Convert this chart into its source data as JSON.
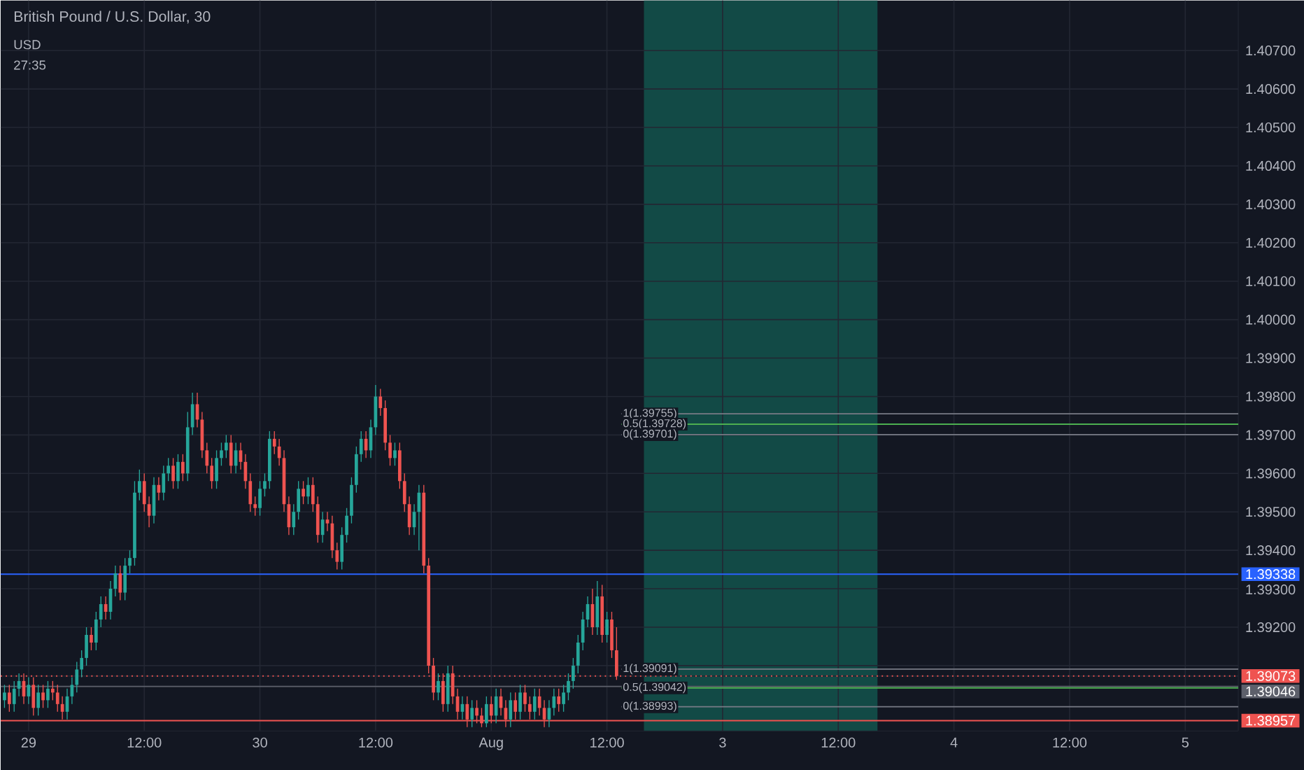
{
  "chart_data": {
    "type": "candlestick",
    "title": "British Pound / U.S. Dollar, 30",
    "categories": [
      null,
      null,
      null,
      null,
      null,
      "29",
      null,
      null,
      null,
      null,
      null,
      null,
      null,
      null,
      null,
      null,
      null,
      null,
      null,
      null,
      null,
      null,
      null,
      null,
      null,
      null,
      null,
      null,
      null,
      "12:00",
      null,
      null,
      null,
      null,
      null,
      null,
      null,
      null,
      null,
      null,
      null,
      null,
      null,
      null,
      null,
      null,
      null,
      null,
      null,
      null,
      null,
      null,
      null,
      "30",
      null,
      null,
      null,
      null,
      null,
      null,
      null,
      null,
      null,
      null,
      null,
      null,
      null,
      null,
      null,
      null,
      null,
      null,
      null,
      null,
      null,
      null,
      null,
      "12:00",
      null,
      null,
      null,
      null,
      null,
      null,
      null,
      null,
      null,
      null,
      null,
      null,
      null,
      null,
      null,
      null,
      null,
      null,
      null,
      null,
      null,
      null,
      null,
      "Aug",
      null,
      null,
      null,
      null,
      null,
      null,
      null,
      null,
      null,
      null,
      null,
      null,
      null,
      null,
      null,
      null,
      null,
      null,
      null,
      null,
      null,
      null,
      null,
      "12:00",
      null,
      null,
      null,
      null,
      null,
      null,
      null,
      null,
      null,
      null,
      null,
      null,
      null,
      null,
      null,
      null,
      null,
      null,
      null,
      null,
      null,
      null,
      null,
      "3",
      null,
      null,
      null,
      null,
      null,
      null,
      null,
      null,
      null,
      null,
      null,
      null,
      null,
      null,
      null,
      null,
      null,
      null,
      null,
      null,
      null,
      null,
      null,
      "12:00",
      null,
      null,
      null,
      null,
      null,
      null,
      null,
      null,
      null,
      null,
      null,
      null,
      null,
      null,
      null,
      null,
      null,
      null,
      null,
      null,
      null,
      null,
      null,
      "4",
      null,
      null,
      null,
      null,
      null,
      null,
      null,
      null,
      null,
      null,
      null,
      null,
      null,
      null,
      null,
      null,
      null,
      null,
      null,
      null,
      null,
      null,
      null,
      "12:00",
      null,
      null,
      null,
      null,
      null,
      null,
      null,
      null,
      null,
      null,
      null,
      null,
      null,
      null,
      null,
      null,
      null,
      null,
      null,
      null,
      null,
      null,
      null,
      "5",
      null,
      null,
      null,
      null,
      null,
      null,
      null,
      null,
      null,
      null,
      null
    ],
    "ohlc": [
      [
        1.3901,
        1.3905,
        1.3899,
        1.3903
      ],
      [
        1.3903,
        1.3905,
        1.3898,
        1.39
      ],
      [
        1.39,
        1.3906,
        1.3898,
        1.3904
      ],
      [
        1.3904,
        1.3908,
        1.3902,
        1.3906
      ],
      [
        1.3906,
        1.3908,
        1.39,
        1.3902
      ],
      [
        1.3902,
        1.3907,
        1.39,
        1.3905
      ],
      [
        1.3905,
        1.3907,
        1.3897,
        1.3899
      ],
      [
        1.3899,
        1.3905,
        1.3897,
        1.3903
      ],
      [
        1.3903,
        1.3905,
        1.3899,
        1.3901
      ],
      [
        1.3901,
        1.3906,
        1.3899,
        1.3904
      ],
      [
        1.3904,
        1.3906,
        1.3901,
        1.3903
      ],
      [
        1.3903,
        1.3905,
        1.3898,
        1.39
      ],
      [
        1.39,
        1.3902,
        1.3896,
        1.3898
      ],
      [
        1.3898,
        1.3904,
        1.3896,
        1.3902
      ],
      [
        1.3902,
        1.3907,
        1.39,
        1.3905
      ],
      [
        1.3905,
        1.3911,
        1.3903,
        1.3909
      ],
      [
        1.3909,
        1.3914,
        1.3907,
        1.3912
      ],
      [
        1.3912,
        1.392,
        1.391,
        1.3918
      ],
      [
        1.3918,
        1.392,
        1.3914,
        1.3916
      ],
      [
        1.3916,
        1.3924,
        1.3914,
        1.3922
      ],
      [
        1.3922,
        1.3928,
        1.392,
        1.3926
      ],
      [
        1.3926,
        1.3928,
        1.3922,
        1.3924
      ],
      [
        1.3924,
        1.3932,
        1.3922,
        1.393
      ],
      [
        1.393,
        1.3936,
        1.3928,
        1.3934
      ],
      [
        1.3934,
        1.3936,
        1.3927,
        1.3929
      ],
      [
        1.3929,
        1.3938,
        1.3927,
        1.3936
      ],
      [
        1.3936,
        1.394,
        1.3934,
        1.3938
      ],
      [
        1.3938,
        1.3958,
        1.3936,
        1.3955
      ],
      [
        1.3955,
        1.3961,
        1.3953,
        1.3958
      ],
      [
        1.3958,
        1.396,
        1.395,
        1.3952
      ],
      [
        1.3952,
        1.3954,
        1.3946,
        1.3949
      ],
      [
        1.3949,
        1.3959,
        1.3947,
        1.3957
      ],
      [
        1.3957,
        1.3959,
        1.3953,
        1.3955
      ],
      [
        1.3955,
        1.3962,
        1.3953,
        1.396
      ],
      [
        1.396,
        1.3964,
        1.3958,
        1.3962
      ],
      [
        1.3962,
        1.3964,
        1.3956,
        1.3958
      ],
      [
        1.3958,
        1.3965,
        1.3956,
        1.3963
      ],
      [
        1.3963,
        1.3965,
        1.3958,
        1.396
      ],
      [
        1.396,
        1.3976,
        1.3958,
        1.3972
      ],
      [
        1.3972,
        1.3981,
        1.397,
        1.3978
      ],
      [
        1.3978,
        1.3981,
        1.3972,
        1.3974
      ],
      [
        1.3974,
        1.3976,
        1.3964,
        1.3966
      ],
      [
        1.3966,
        1.3968,
        1.396,
        1.3962
      ],
      [
        1.3962,
        1.3964,
        1.3956,
        1.3958
      ],
      [
        1.3958,
        1.3966,
        1.3956,
        1.3964
      ],
      [
        1.3964,
        1.3968,
        1.3962,
        1.3966
      ],
      [
        1.3966,
        1.397,
        1.3964,
        1.3968
      ],
      [
        1.3968,
        1.397,
        1.396,
        1.3962
      ],
      [
        1.3962,
        1.3968,
        1.396,
        1.3966
      ],
      [
        1.3966,
        1.3968,
        1.3961,
        1.3963
      ],
      [
        1.3963,
        1.3965,
        1.3956,
        1.3958
      ],
      [
        1.3958,
        1.396,
        1.395,
        1.3952
      ],
      [
        1.3952,
        1.3954,
        1.3949,
        1.3951
      ],
      [
        1.3951,
        1.3958,
        1.3949,
        1.3956
      ],
      [
        1.3956,
        1.396,
        1.3954,
        1.3958
      ],
      [
        1.3958,
        1.3971,
        1.3956,
        1.3969
      ],
      [
        1.3969,
        1.3971,
        1.3965,
        1.3967
      ],
      [
        1.3967,
        1.3969,
        1.3962,
        1.3964
      ],
      [
        1.3964,
        1.3966,
        1.395,
        1.3952
      ],
      [
        1.3952,
        1.3954,
        1.3944,
        1.3946
      ],
      [
        1.3946,
        1.3952,
        1.3944,
        1.395
      ],
      [
        1.395,
        1.3958,
        1.3948,
        1.3956
      ],
      [
        1.3956,
        1.3958,
        1.3952,
        1.3954
      ],
      [
        1.3954,
        1.3959,
        1.3952,
        1.3957
      ],
      [
        1.3957,
        1.3959,
        1.395,
        1.3952
      ],
      [
        1.3952,
        1.3954,
        1.3942,
        1.3944
      ],
      [
        1.3944,
        1.395,
        1.3942,
        1.3948
      ],
      [
        1.3948,
        1.395,
        1.3945,
        1.3947
      ],
      [
        1.3947,
        1.3949,
        1.3938,
        1.394
      ],
      [
        1.394,
        1.3942,
        1.3935,
        1.3937
      ],
      [
        1.3937,
        1.3946,
        1.3935,
        1.3944
      ],
      [
        1.3944,
        1.3951,
        1.3942,
        1.3949
      ],
      [
        1.3949,
        1.3959,
        1.3947,
        1.3957
      ],
      [
        1.3957,
        1.3967,
        1.3955,
        1.3965
      ],
      [
        1.3965,
        1.3971,
        1.3963,
        1.3969
      ],
      [
        1.3969,
        1.3971,
        1.3964,
        1.3966
      ],
      [
        1.3966,
        1.3974,
        1.3964,
        1.3972
      ],
      [
        1.3972,
        1.3983,
        1.397,
        1.398
      ],
      [
        1.398,
        1.3982,
        1.3975,
        1.3977
      ],
      [
        1.3977,
        1.3979,
        1.3966,
        1.3968
      ],
      [
        1.3968,
        1.397,
        1.3962,
        1.3964
      ],
      [
        1.3964,
        1.3968,
        1.3962,
        1.3966
      ],
      [
        1.3966,
        1.3968,
        1.3956,
        1.3958
      ],
      [
        1.3958,
        1.396,
        1.395,
        1.3952
      ],
      [
        1.3952,
        1.3954,
        1.3944,
        1.3946
      ],
      [
        1.3946,
        1.3952,
        1.3944,
        1.395
      ],
      [
        1.395,
        1.3957,
        1.394,
        1.3955
      ],
      [
        1.3955,
        1.3957,
        1.3934,
        1.3936
      ],
      [
        1.3936,
        1.3938,
        1.3908,
        1.391
      ],
      [
        1.391,
        1.3912,
        1.3901,
        1.3903
      ],
      [
        1.3903,
        1.3908,
        1.3901,
        1.3906
      ],
      [
        1.3906,
        1.3908,
        1.3898,
        1.39
      ],
      [
        1.39,
        1.391,
        1.3898,
        1.3908
      ],
      [
        1.3908,
        1.391,
        1.39,
        1.3902
      ],
      [
        1.3902,
        1.3904,
        1.3896,
        1.3898
      ],
      [
        1.3898,
        1.3902,
        1.3896,
        1.39
      ],
      [
        1.39,
        1.3902,
        1.3894,
        1.3896
      ],
      [
        1.3896,
        1.3901,
        1.3894,
        1.3899
      ],
      [
        1.3899,
        1.3901,
        1.3895,
        1.3897
      ],
      [
        1.3897,
        1.3899,
        1.3894,
        1.3895
      ],
      [
        1.3895,
        1.3902,
        1.3894,
        1.39
      ],
      [
        1.39,
        1.3902,
        1.3895,
        1.3897
      ],
      [
        1.3897,
        1.3904,
        1.3895,
        1.3902
      ],
      [
        1.3902,
        1.3904,
        1.3897,
        1.3899
      ],
      [
        1.3899,
        1.3901,
        1.3894,
        1.3896
      ],
      [
        1.3896,
        1.3903,
        1.3894,
        1.3901
      ],
      [
        1.3901,
        1.3903,
        1.3896,
        1.3898
      ],
      [
        1.3898,
        1.3905,
        1.3896,
        1.3903
      ],
      [
        1.3903,
        1.3905,
        1.3898,
        1.39
      ],
      [
        1.39,
        1.3902,
        1.3896,
        1.3898
      ],
      [
        1.3898,
        1.3904,
        1.3896,
        1.3902
      ],
      [
        1.3902,
        1.3904,
        1.3897,
        1.3899
      ],
      [
        1.3899,
        1.3901,
        1.3894,
        1.3896
      ],
      [
        1.3896,
        1.3901,
        1.3894,
        1.3899
      ],
      [
        1.3899,
        1.3904,
        1.3897,
        1.3902
      ],
      [
        1.3902,
        1.3904,
        1.3898,
        1.39
      ],
      [
        1.39,
        1.3905,
        1.3898,
        1.3903
      ],
      [
        1.3903,
        1.3908,
        1.3901,
        1.3906
      ],
      [
        1.3906,
        1.3912,
        1.3904,
        1.391
      ],
      [
        1.391,
        1.3918,
        1.3908,
        1.3916
      ],
      [
        1.3916,
        1.3924,
        1.3914,
        1.3922
      ],
      [
        1.3922,
        1.3928,
        1.392,
        1.3926
      ],
      [
        1.3926,
        1.393,
        1.3918,
        1.392
      ],
      [
        1.392,
        1.3932,
        1.3918,
        1.3928
      ],
      [
        1.3928,
        1.3931,
        1.3916,
        1.3918
      ],
      [
        1.3918,
        1.3924,
        1.3916,
        1.3922
      ],
      [
        1.3922,
        1.3924,
        1.3912,
        1.3914
      ],
      [
        1.3914,
        1.392,
        1.39063,
        1.39073
      ],
      null,
      null,
      null,
      null,
      null,
      null,
      null,
      null,
      null,
      null,
      null,
      null,
      null,
      null,
      null,
      null,
      null,
      null,
      null,
      null,
      null,
      null,
      null,
      null,
      null,
      null,
      null,
      null,
      null,
      null,
      null,
      null,
      null,
      null,
      null,
      null,
      null,
      null,
      null,
      null,
      null,
      null,
      null,
      null,
      null,
      null,
      null,
      null,
      null,
      null,
      null,
      null,
      null,
      null,
      null,
      null,
      null,
      null,
      null,
      null,
      null,
      null,
      null,
      null,
      null,
      null,
      null,
      null,
      null,
      null,
      null,
      null,
      null,
      null,
      null,
      null,
      null,
      null,
      null,
      null,
      null,
      null,
      null,
      null,
      null,
      null,
      null,
      null,
      null,
      null,
      null,
      null,
      null,
      null,
      null,
      null,
      null,
      null,
      null,
      null,
      null,
      null,
      null,
      null,
      null,
      null,
      null,
      null,
      null,
      null,
      null,
      null,
      null,
      null,
      null,
      null,
      null,
      null,
      null,
      null,
      null,
      null,
      null,
      null,
      null,
      null,
      null,
      null,
      null
    ],
    "ylim": [
      1.3893,
      1.4083
    ],
    "yticks": [
      {
        "value": 1.38957,
        "label": "1.38957"
      },
      {
        "value": 1.39046,
        "label": "1.39046"
      },
      {
        "value": 1.39073,
        "label": "1.39073"
      },
      {
        "value": 1.391,
        "label": null
      },
      {
        "value": 1.392,
        "label": "1.39200"
      },
      {
        "value": 1.393,
        "label": "1.39300"
      },
      {
        "value": 1.39338,
        "label": "1.39338"
      },
      {
        "value": 1.394,
        "label": "1.39400"
      },
      {
        "value": 1.395,
        "label": "1.39500"
      },
      {
        "value": 1.396,
        "label": "1.39600"
      },
      {
        "value": 1.397,
        "label": "1.39700"
      },
      {
        "value": 1.398,
        "label": "1.39800"
      },
      {
        "value": 1.399,
        "label": "1.39900"
      },
      {
        "value": 1.4,
        "label": "1.40000"
      },
      {
        "value": 1.401,
        "label": "1.40100"
      },
      {
        "value": 1.402,
        "label": "1.40200"
      },
      {
        "value": 1.403,
        "label": "1.40300"
      },
      {
        "value": 1.404,
        "label": "1.40400"
      },
      {
        "value": 1.405,
        "label": "1.40500"
      },
      {
        "value": 1.406,
        "label": "1.40600"
      },
      {
        "value": 1.407,
        "label": "1.40700"
      }
    ],
    "grid": true,
    "ref_lines": [
      {
        "axis": "y",
        "value": 1.39338,
        "color": "#2962ff",
        "line_style": "solid"
      },
      {
        "axis": "y",
        "value": 1.39073,
        "color": "#ef5350",
        "line_style": "dotted"
      },
      {
        "axis": "y",
        "value": 1.39046,
        "color": "#5d606b",
        "line_style": "solid"
      },
      {
        "axis": "y",
        "value": 1.38957,
        "color": "#ef5350",
        "line_style": "solid"
      },
      {
        "axis": "y",
        "value": 1.39755,
        "label": "1(1.39755)",
        "color": "#787b86",
        "line_style": "solid"
      },
      {
        "axis": "y",
        "value": 1.39728,
        "label": "0.5(1.39728)",
        "color": "#4caf50",
        "line_style": "solid"
      },
      {
        "axis": "y",
        "value": 1.39701,
        "label": "0(1.39701)",
        "color": "#787b86",
        "line_style": "solid"
      },
      {
        "axis": "y",
        "value": 1.39091,
        "label": "1(1.39091)",
        "color": "#787b86",
        "line_style": "solid"
      },
      {
        "axis": "y",
        "value": 1.39042,
        "label": "0.5(1.39042)",
        "color": "#4caf50",
        "line_style": "solid"
      },
      {
        "axis": "y",
        "value": 1.38993,
        "label": "0(1.38993)",
        "color": "#787b86",
        "line_style": "solid"
      }
    ],
    "annotations": [
      "USD",
      "27:35"
    ]
  }
}
